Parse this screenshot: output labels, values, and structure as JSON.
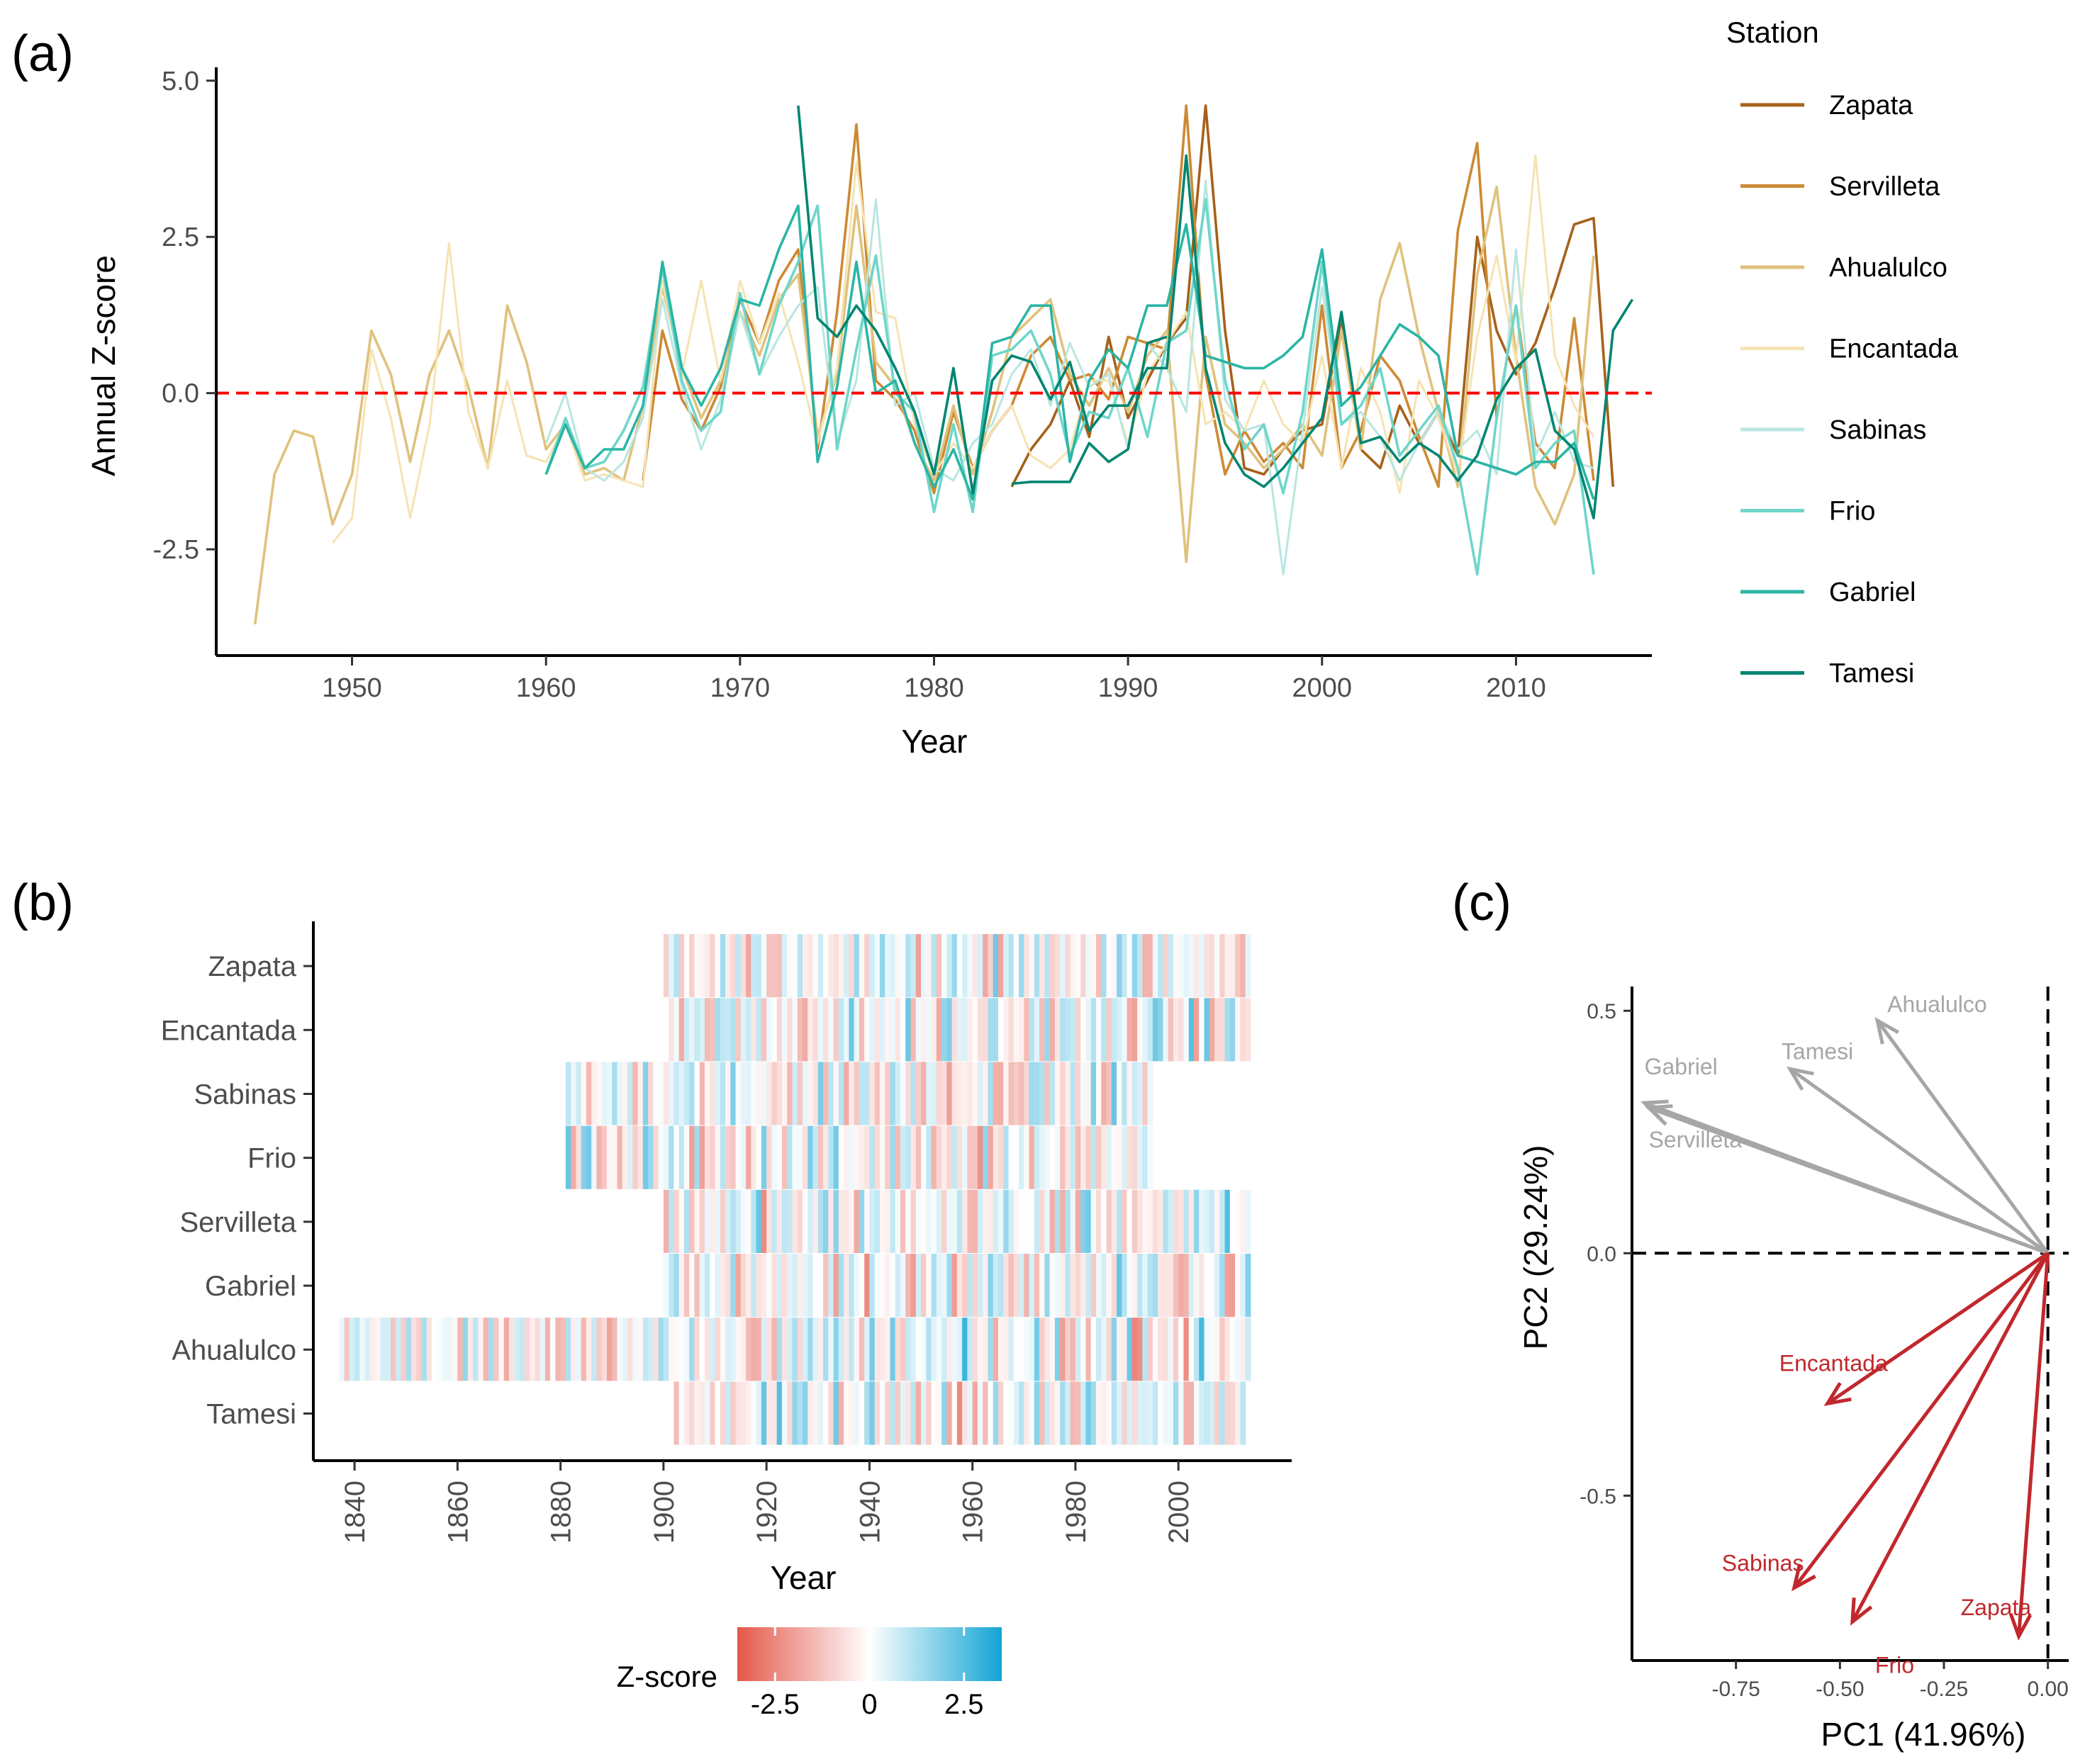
{
  "colors": {
    "Zapata": "#a6611a",
    "Servilleta": "#cd8a34",
    "Ahualulco": "#dfc27d",
    "Encantada": "#f6e3b3",
    "Sabinas": "#b9e6e0",
    "Frio": "#6ed6ca",
    "Gabriel": "#2bb5a5",
    "Tamesi": "#018571",
    "zero_line": "#ff0000",
    "pca_gray": "#a6a6a6",
    "pca_red": "#c0282d",
    "heat_neg": "#e3584a",
    "heat_mid": "#ffffff",
    "heat_pos": "#12a5d4"
  },
  "panel_a": {
    "label": "(a)",
    "legend_title": "Station",
    "chart_data": {
      "type": "line",
      "xlabel": "Year",
      "ylabel": "Annual Z-score",
      "xlim": [
        1943,
        2017
      ],
      "ylim": [
        -4.2,
        5.1
      ],
      "xticks": [
        1950,
        1960,
        1970,
        1980,
        1990,
        2000,
        2010
      ],
      "yticks": [
        -2.5,
        0.0,
        2.5,
        5.0
      ],
      "ytick_labels": [
        "-2.5",
        "0.0",
        "2.5",
        "5.0"
      ],
      "reference_line": 0,
      "series": [
        {
          "name": "Zapata",
          "x_start": 1984,
          "values": [
            -1.5,
            -0.9,
            -0.5,
            0.2,
            -0.7,
            0.9,
            -0.4,
            0.2,
            0.8,
            1.2,
            4.6,
            1.0,
            -1.2,
            -1.3,
            -0.9,
            -0.6,
            -0.5,
            1.2,
            -0.9,
            -1.2,
            -0.2,
            -0.8,
            -0.3,
            -1.0,
            2.5,
            1.0,
            0.3,
            0.8,
            1.7,
            2.7,
            2.8,
            -1.5
          ]
        },
        {
          "name": "Servilleta",
          "x_start": 1965,
          "values": [
            -1.4,
            1.0,
            -0.1,
            -0.6,
            0.1,
            1.5,
            0.8,
            1.8,
            2.3,
            -0.9,
            1.3,
            4.3,
            0.2,
            -0.1,
            -0.6,
            -1.6,
            -0.3,
            -1.2,
            -0.6,
            -0.2,
            0.6,
            0.9,
            0.2,
            0.3,
            -0.1,
            0.9,
            0.8,
            0.7,
            4.6,
            0.3,
            -1.3,
            -0.6,
            -1.1,
            -0.8,
            -1.2,
            1.4,
            -1.2,
            -0.6,
            0.6,
            0.2,
            -0.7,
            -1.5,
            2.6,
            4.0,
            -0.4,
            1.4,
            -0.8,
            -1.2,
            1.2,
            -1.4
          ]
        },
        {
          "name": "Ahualulco",
          "x_start": 1945,
          "values": [
            -3.7,
            -1.3,
            -0.6,
            -0.7,
            -2.1,
            -1.3,
            1.0,
            0.3,
            -1.1,
            0.3,
            1.0,
            0.1,
            -1.2,
            1.4,
            0.5,
            -0.9,
            -0.5,
            -1.3,
            -1.2,
            -1.4,
            -0.2,
            1.7,
            0.4,
            -0.4,
            0.2,
            1.3,
            0.6,
            1.5,
            1.9,
            -0.7,
            0.3,
            3.0,
            0.5,
            0.1,
            -0.8,
            -1.4,
            -0.2,
            -1.3,
            -0.3,
            0.9,
            1.2,
            1.5,
            0.3,
            -0.2,
            0.4,
            -0.3,
            0.6,
            1.0,
            -2.7,
            0.9,
            -0.5,
            -0.8,
            -1.2,
            -0.9,
            -0.5,
            -1.0,
            1.0,
            -0.9,
            1.5,
            2.4,
            0.9,
            -0.3,
            -1.5,
            1.9,
            3.3,
            0.6,
            -1.5,
            -2.1,
            -1.3,
            2.2
          ]
        },
        {
          "name": "Encantada",
          "x_start": 1949,
          "values": [
            -2.4,
            -2.0,
            0.7,
            -0.4,
            -2.0,
            -0.5,
            2.4,
            -0.3,
            -1.2,
            0.2,
            -1.0,
            -1.1,
            -0.5,
            -1.4,
            -1.3,
            -1.4,
            -1.5,
            1.8,
            0.3,
            1.8,
            0.2,
            1.8,
            0.8,
            1.6,
            0.5,
            -0.8,
            0.4,
            3.7,
            1.3,
            1.2,
            -0.5,
            -1.3,
            -0.8,
            -1.2,
            -0.6,
            -0.2,
            -1.0,
            -1.2,
            -0.9,
            0.2,
            0.2,
            -0.8,
            0.3,
            0.8,
            1.3,
            -0.5,
            -0.3,
            -0.6,
            0.2,
            -0.5,
            -0.8,
            0.6,
            -1.2,
            0.4,
            -0.3,
            -1.6,
            0.2,
            -0.4,
            -1.3,
            0.9,
            2.2,
            0.5,
            3.8,
            0.6,
            -0.2,
            -0.7
          ]
        },
        {
          "name": "Sabinas",
          "x_start": 1960,
          "values": [
            -0.8,
            0.0,
            -1.2,
            -1.4,
            -1.1,
            -0.4,
            1.5,
            0.1,
            -0.9,
            -0.1,
            1.3,
            0.3,
            0.9,
            1.4,
            1.7,
            -0.8,
            0.2,
            3.1,
            -0.2,
            0.0,
            -1.2,
            -1.4,
            -0.8,
            -0.5,
            0.3,
            0.7,
            -0.2,
            0.8,
            0.1,
            0.3,
            -0.9,
            0.8,
            0.4,
            -0.3,
            3.4,
            -0.1,
            -0.6,
            -0.5,
            -2.9,
            -0.6,
            1.7,
            -0.5,
            -0.3,
            -0.7,
            -1.4,
            -0.8,
            -0.3,
            -0.9,
            -0.6,
            -1.3,
            2.3,
            -1.0,
            -0.3,
            -1.1,
            -1.2
          ]
        },
        {
          "name": "Frio",
          "x_start": 1960,
          "values": [
            -1.3,
            -0.4,
            -1.2,
            -1.1,
            -0.6,
            0.1,
            2.0,
            0.2,
            -0.6,
            -0.3,
            1.6,
            0.3,
            1.4,
            2.1,
            3.0,
            -0.9,
            0.7,
            2.2,
            0.0,
            -0.3,
            -1.9,
            -0.5,
            -1.9,
            0.6,
            0.7,
            1.0,
            0.3,
            -1.0,
            -0.3,
            -0.4,
            0.4,
            -0.7,
            0.8,
            1.0,
            3.1,
            0.2,
            -0.9,
            -0.5,
            -1.6,
            -0.3,
            2.1,
            -0.5,
            -0.2,
            0.4,
            -1.0,
            -0.6,
            -0.2,
            -1.2,
            -2.9,
            -0.4,
            1.4,
            -1.2,
            -0.8,
            -0.6,
            -2.9
          ]
        },
        {
          "name": "Gabriel",
          "x_start": 1960,
          "values": [
            -1.3,
            -0.5,
            -1.2,
            -0.9,
            -0.9,
            -0.2,
            2.1,
            0.4,
            -0.2,
            0.4,
            1.5,
            1.4,
            2.3,
            3.0,
            -1.1,
            0.1,
            2.1,
            0.0,
            0.2,
            -0.8,
            -1.5,
            -0.9,
            -1.7,
            0.8,
            0.9,
            1.4,
            1.4,
            -1.1,
            0.2,
            0.7,
            0.4,
            1.4,
            1.4,
            2.7,
            0.6,
            0.5,
            0.4,
            0.4,
            0.6,
            0.9,
            2.3,
            -0.2,
            0.1,
            0.6,
            1.1,
            0.9,
            0.6,
            -1.0,
            -1.1,
            -1.2,
            -1.3,
            -1.1,
            -1.1,
            -0.8,
            -1.7
          ]
        },
        {
          "name": "Tamesi",
          "x_start": 1973,
          "values": [
            4.6,
            1.2,
            0.9,
            1.4,
            1.0,
            0.4,
            -0.3,
            -1.3,
            0.4,
            -1.6,
            0.2,
            0.6,
            0.5,
            -0.1,
            0.5,
            -0.6,
            -0.2,
            -0.2,
            0.4,
            0.4,
            3.8,
            0.4,
            -0.8,
            -1.3,
            -1.5,
            -1.2,
            -0.8,
            -0.4,
            1.3,
            -0.8,
            -0.7,
            -1.1,
            -0.8,
            -1.0,
            -1.4,
            -1.0,
            -0.1,
            0.4,
            0.7,
            -0.6,
            -0.9,
            -2.0,
            1.0,
            1.5
          ]
        },
        {
          "name": "Tamesi",
          "x_start": 1984,
          "values": [
            -1.45,
            -1.42,
            -1.42,
            -1.42,
            -0.8,
            -1.1,
            -0.9,
            0.8,
            0.9
          ]
        }
      ]
    }
  },
  "panel_b": {
    "label": "(b)",
    "chart_data": {
      "type": "heatmap",
      "xlabel": "Year",
      "xlim": [
        1832,
        2022
      ],
      "xticks": [
        1840,
        1860,
        1880,
        1900,
        1920,
        1940,
        1960,
        1980,
        2000
      ],
      "rows": [
        {
          "name": "Zapata",
          "start": 1900,
          "end": 2013
        },
        {
          "name": "Encantada",
          "start": 1901,
          "end": 2013
        },
        {
          "name": "Sabinas",
          "start": 1881,
          "end": 1994
        },
        {
          "name": "Frio",
          "start": 1881,
          "end": 1994
        },
        {
          "name": "Servilleta",
          "start": 1900,
          "end": 2013
        },
        {
          "name": "Gabriel",
          "start": 1900,
          "end": 2013
        },
        {
          "name": "Ahualulco",
          "start": 1837,
          "end": 2013
        },
        {
          "name": "Tamesi",
          "start": 1902,
          "end": 2012
        }
      ],
      "colorbar": {
        "title": "Z-score",
        "min": -3.5,
        "max": 3.5,
        "ticks": [
          -2.5,
          0,
          2.5
        ],
        "tick_labels": [
          "-2.5",
          "0",
          "2.5"
        ]
      }
    }
  },
  "panel_c": {
    "label": "(c)",
    "chart_data": {
      "type": "biplot",
      "xlabel": "PC1 (41.96%)",
      "ylabel": "PC2 (29.24%)",
      "xlim": [
        -1.0,
        0.05
      ],
      "ylim": [
        -0.84,
        0.55
      ],
      "xticks": [
        -0.75,
        -0.5,
        -0.25,
        0.0
      ],
      "xtick_labels": [
        "-0.75",
        "-0.50",
        "-0.25",
        "0.00"
      ],
      "yticks": [
        -0.5,
        0.0,
        0.5
      ],
      "ytick_labels": [
        "-0.5",
        "0.0",
        "0.5"
      ],
      "arrows": [
        {
          "name": "Ahualulco",
          "x": -0.41,
          "y": 0.48,
          "group": "positive"
        },
        {
          "name": "Tamesi",
          "x": -0.62,
          "y": 0.38,
          "group": "positive"
        },
        {
          "name": "Gabriel",
          "x": -0.97,
          "y": 0.31,
          "group": "positive"
        },
        {
          "name": "Servilleta",
          "x": -0.96,
          "y": 0.3,
          "group": "positive"
        },
        {
          "name": "Encantada",
          "x": -0.53,
          "y": -0.31,
          "group": "negative"
        },
        {
          "name": "Sabinas",
          "x": -0.61,
          "y": -0.69,
          "group": "negative"
        },
        {
          "name": "Frio",
          "x": -0.47,
          "y": -0.76,
          "group": "negative"
        },
        {
          "name": "Zapata",
          "x": -0.07,
          "y": -0.79,
          "group": "negative"
        }
      ]
    }
  }
}
